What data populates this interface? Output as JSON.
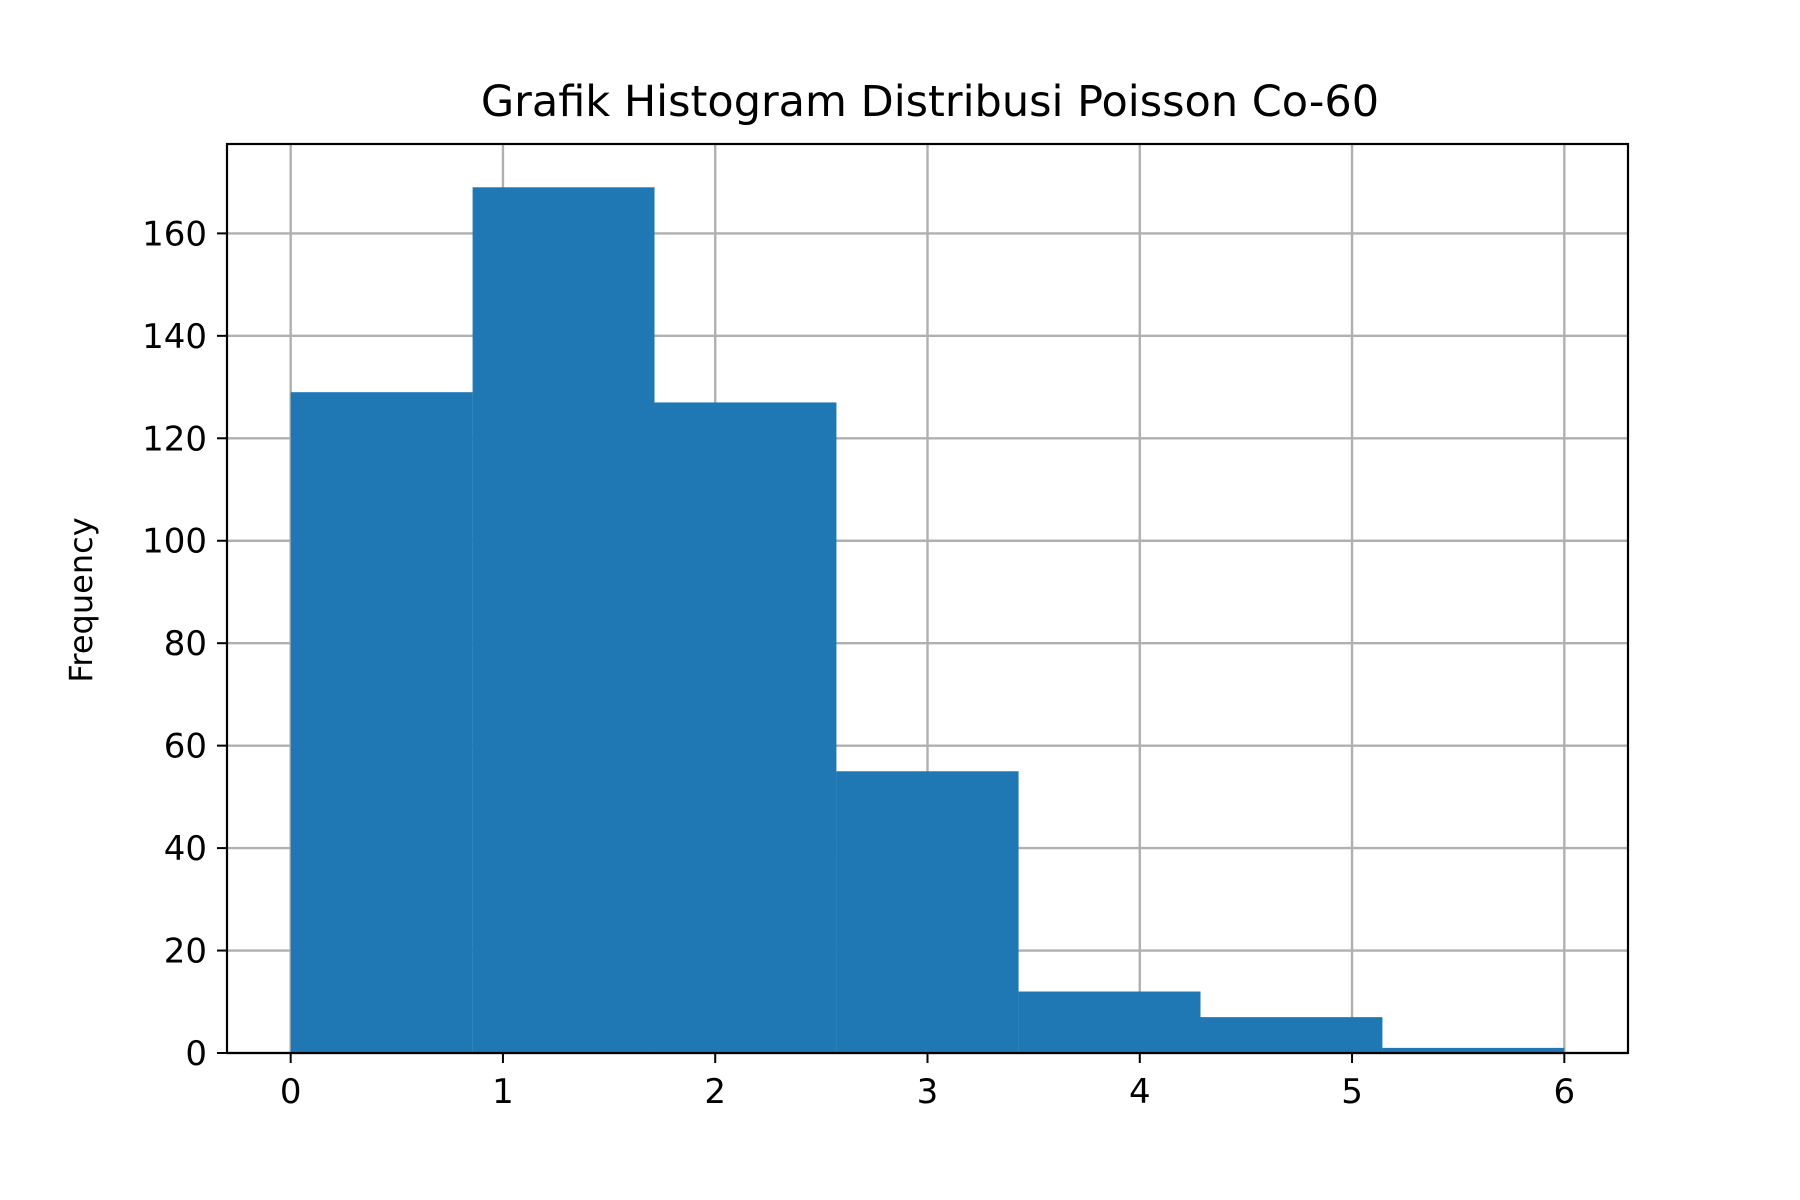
{
  "chart_data": {
    "type": "bar",
    "subtype": "histogram",
    "title": "Grafik Histogram Distribusi Poisson Co-60",
    "xlabel": "",
    "ylabel": "Frequency",
    "bin_edges": [
      0,
      0.857,
      1.714,
      2.571,
      3.429,
      4.286,
      5.143,
      6
    ],
    "values": [
      129,
      169,
      127,
      55,
      12,
      7,
      1
    ],
    "xlim": [
      -0.3,
      6.3
    ],
    "ylim": [
      0,
      177.45
    ],
    "xticks": [
      0,
      1,
      2,
      3,
      4,
      5,
      6
    ],
    "yticks": [
      0,
      20,
      40,
      60,
      80,
      100,
      120,
      140,
      160
    ],
    "grid": true,
    "bar_color": "#1f77b4"
  }
}
